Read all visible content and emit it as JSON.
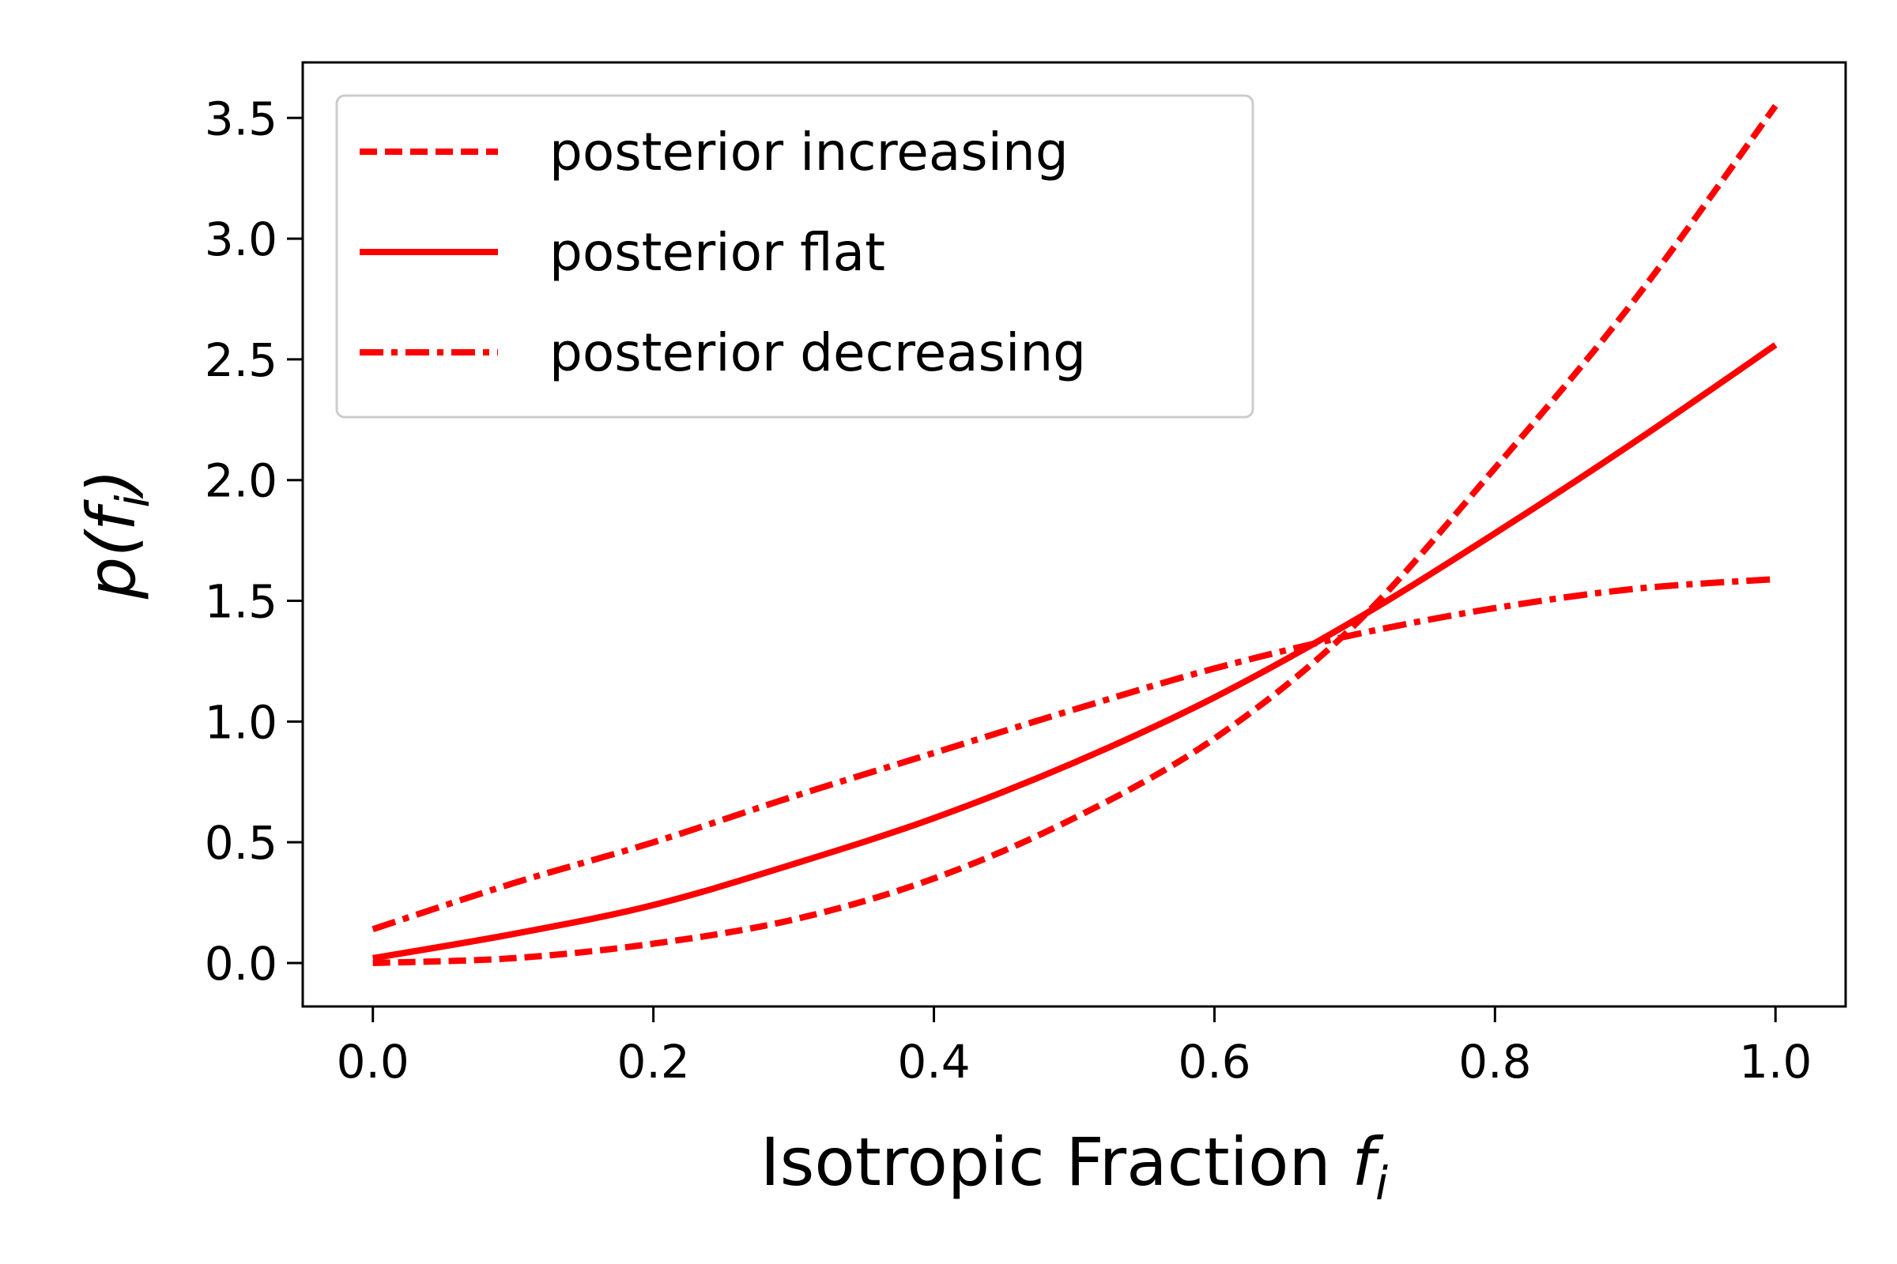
{
  "chart_data": {
    "type": "line",
    "xlabel": "Isotropic Fraction",
    "xlabel_sub": "f",
    "xlabel_sub_index": "i",
    "ylabel_prefix": "p(",
    "ylabel_var": "f",
    "ylabel_index": "i",
    "ylabel_suffix": ")",
    "xlim": [
      -0.05,
      1.05
    ],
    "ylim": [
      -0.18,
      3.73
    ],
    "xticks": [
      0.0,
      0.2,
      0.4,
      0.6,
      0.8,
      1.0
    ],
    "xtick_labels": [
      "0.0",
      "0.2",
      "0.4",
      "0.6",
      "0.8",
      "1.0"
    ],
    "yticks": [
      0.0,
      0.5,
      1.0,
      1.5,
      2.0,
      2.5,
      3.0,
      3.5
    ],
    "ytick_labels": [
      "0.0",
      "0.5",
      "1.0",
      "1.5",
      "2.0",
      "2.5",
      "3.0",
      "3.5"
    ],
    "grid": false,
    "legend_position": "top-left",
    "color": "#ff0000",
    "x": [
      0.0,
      0.1,
      0.2,
      0.3,
      0.4,
      0.5,
      0.6,
      0.7,
      0.8,
      0.9,
      1.0
    ],
    "series": [
      {
        "name": "posterior increasing",
        "style": "dashed",
        "values": [
          0.0,
          0.02,
          0.08,
          0.18,
          0.35,
          0.6,
          0.93,
          1.4,
          2.05,
          2.75,
          3.55
        ]
      },
      {
        "name": "posterior flat",
        "style": "solid",
        "values": [
          0.02,
          0.12,
          0.24,
          0.41,
          0.6,
          0.83,
          1.1,
          1.42,
          1.78,
          2.16,
          2.56
        ]
      },
      {
        "name": "posterior decreasing",
        "style": "dashdot",
        "values": [
          0.14,
          0.33,
          0.5,
          0.69,
          0.87,
          1.05,
          1.22,
          1.36,
          1.47,
          1.55,
          1.59
        ]
      }
    ]
  }
}
